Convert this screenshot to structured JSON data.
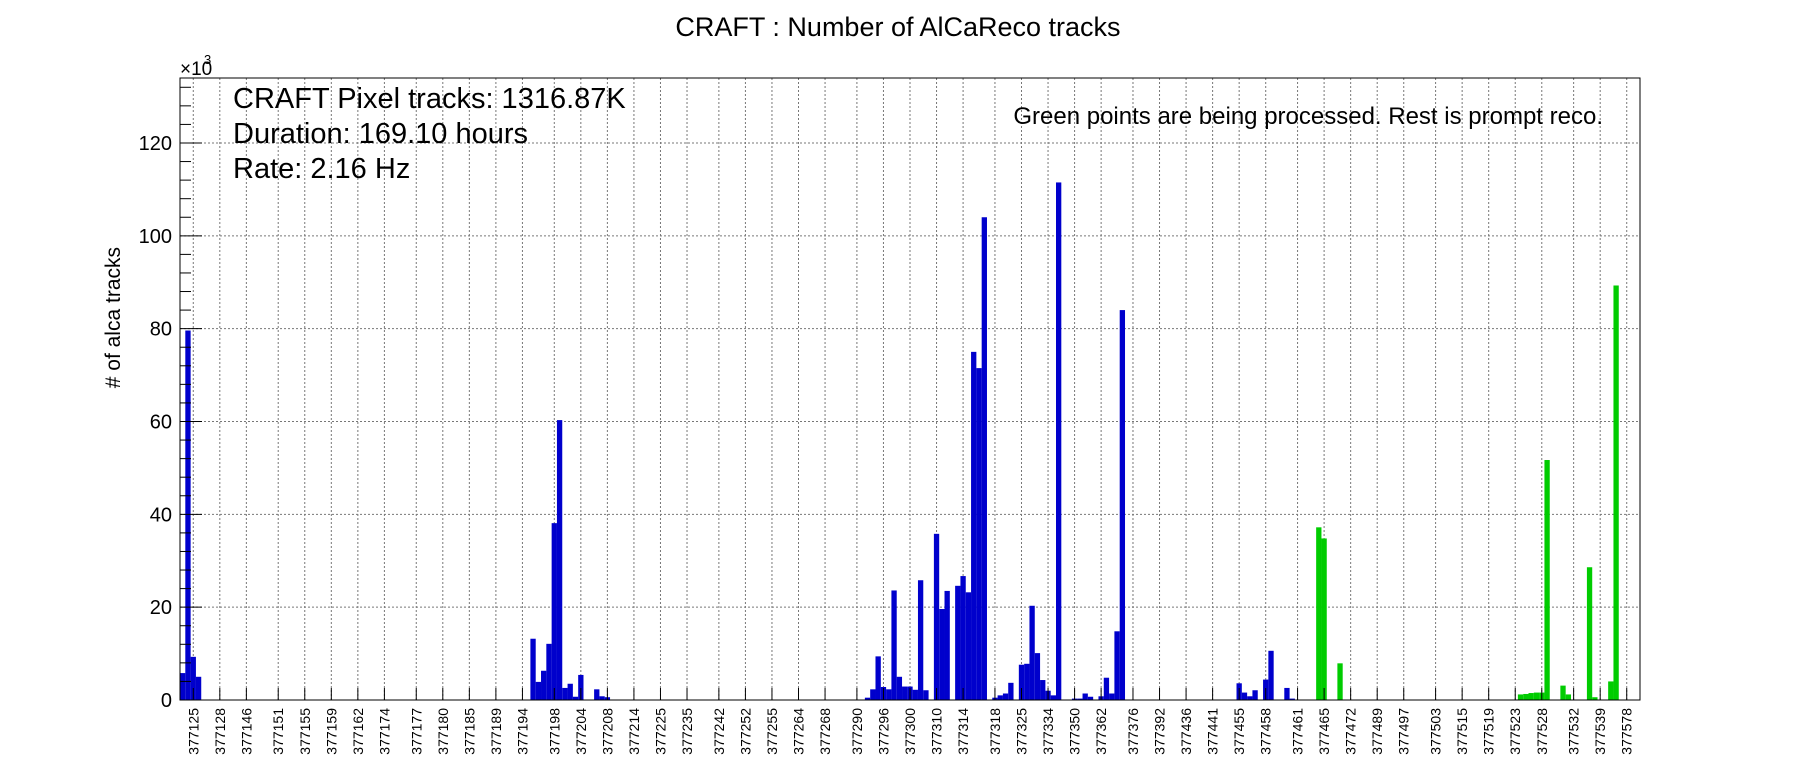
{
  "chart_data": {
    "type": "bar",
    "title": "CRAFT : Number of AlCaReco tracks",
    "ylabel": "# of alca tracks",
    "xlabel": "",
    "y_multiplier_label": "×10",
    "y_multiplier_exp": "3",
    "ylim": [
      0,
      134
    ],
    "y_ticks": [
      0,
      20,
      40,
      60,
      80,
      100,
      120
    ],
    "y_tick_labels": [
      "0",
      "20",
      "40",
      "60",
      "80",
      "100",
      "120"
    ],
    "grid": true,
    "annotations": {
      "stats": [
        "CRAFT Pixel tracks: 1316.87K",
        "Duration: 169.10 hours",
        "Rate: 2.16 Hz"
      ],
      "note": "Green points are being processed. Rest is prompt reco."
    },
    "tick_labels": [
      "377125",
      "377128",
      "377146",
      "377151",
      "377155",
      "377159",
      "377162",
      "377174",
      "377177",
      "377180",
      "377185",
      "377189",
      "377194",
      "377198",
      "377204",
      "377208",
      "377214",
      "377225",
      "377235",
      "377242",
      "377252",
      "377255",
      "377264",
      "377268",
      "377290",
      "377296",
      "377300",
      "377310",
      "377314",
      "377318",
      "377325",
      "377334",
      "377350",
      "377362",
      "377376",
      "377392",
      "377436",
      "377441",
      "377455",
      "377458",
      "377461",
      "377465",
      "377472",
      "377489",
      "377497",
      "377503",
      "377515",
      "377519",
      "377523",
      "377528",
      "377532",
      "377539",
      "377578"
    ],
    "colors": {
      "prompt": "#0000cc",
      "processing": "#00cc00"
    },
    "series": [
      {
        "name": "prompt",
        "values": [
          5.8,
          79.6,
          9.3,
          5.0,
          0,
          0,
          0,
          0,
          0,
          0,
          0,
          0,
          0,
          0,
          0,
          0,
          0,
          0,
          0,
          0,
          0,
          0,
          0,
          0,
          0,
          0,
          0,
          0,
          0,
          0,
          0,
          0,
          0,
          0,
          0,
          0,
          0,
          0,
          0,
          0,
          0,
          0,
          0,
          0,
          0,
          0,
          0,
          0,
          0,
          0,
          0,
          0,
          0,
          0,
          0,
          0,
          0,
          0,
          0,
          0,
          0,
          0,
          0,
          0,
          0,
          0,
          13.2,
          3.9,
          6.3,
          12.1,
          38.1,
          60.3,
          2.6,
          3.5,
          0.7,
          5.4,
          0,
          0,
          2.3,
          0.8,
          0.6,
          0,
          0,
          0,
          0,
          0,
          0,
          0,
          0,
          0,
          0,
          0,
          0,
          0,
          0,
          0,
          0,
          0,
          0,
          0,
          0,
          0,
          0,
          0,
          0,
          0,
          0,
          0,
          0,
          0,
          0,
          0,
          0,
          0,
          0,
          0,
          0,
          0,
          0,
          0,
          0,
          0,
          0,
          0,
          0,
          0,
          0,
          0,
          0,
          0.5,
          2.3,
          9.4,
          2.8,
          2.3,
          23.6,
          5.0,
          2.9,
          2.9,
          2.2,
          25.8,
          2.1,
          0,
          35.8,
          19.6,
          23.5,
          0,
          24.6,
          26.7,
          23.2,
          75.0,
          71.5,
          104.0,
          0,
          0.5,
          1.0,
          1.4,
          3.7,
          0,
          7.6,
          7.8,
          20.3,
          10.1,
          4.3,
          2.0,
          1.0,
          111.5,
          0,
          0,
          0.3,
          0.3,
          1.4,
          0.7,
          0,
          0.8,
          4.8,
          1.4,
          14.8,
          84.0,
          0,
          0,
          0,
          0,
          0,
          0,
          0,
          0,
          0,
          0,
          0,
          0,
          0,
          0,
          0,
          0,
          0,
          0,
          0,
          0,
          0,
          3.6,
          1.6,
          0.8,
          2.1,
          0,
          4.4,
          10.6,
          0,
          0,
          2.6,
          0.3,
          0,
          0,
          0,
          0,
          0,
          0,
          0,
          0,
          0,
          0,
          0,
          0,
          0,
          0,
          0,
          0,
          0,
          0,
          0,
          0,
          0,
          0,
          0,
          0,
          0,
          0,
          0,
          0,
          0,
          0,
          0,
          0,
          0,
          0,
          0,
          0,
          0,
          0,
          0,
          0,
          0,
          0,
          0,
          0,
          0,
          0,
          0,
          0,
          0,
          0,
          0,
          0,
          0,
          0,
          0,
          0,
          0,
          0,
          0,
          0,
          0,
          0,
          0,
          0,
          0
        ]
      },
      {
        "name": "processing",
        "values": [
          0,
          0,
          0,
          0,
          0,
          0,
          0,
          0,
          0,
          0,
          0,
          0,
          0,
          0,
          0,
          0,
          0,
          0,
          0,
          0,
          0,
          0,
          0,
          0,
          0,
          0,
          0,
          0,
          0,
          0,
          0,
          0,
          0,
          0,
          0,
          0,
          0,
          0,
          0,
          0,
          0,
          0,
          0,
          0,
          0,
          0,
          0,
          0,
          0,
          0,
          0,
          0,
          0,
          0,
          0,
          0,
          0,
          0,
          0,
          0,
          0,
          0,
          0,
          0,
          0,
          0,
          0,
          0,
          0,
          0,
          0,
          0,
          0,
          0,
          0,
          0,
          0,
          0,
          0,
          0,
          0,
          0,
          0,
          0,
          0,
          0,
          0,
          0,
          0,
          0,
          0,
          0,
          0,
          0,
          0,
          0,
          0,
          0,
          0,
          0,
          0,
          0,
          0,
          0,
          0,
          0,
          0,
          0,
          0,
          0,
          0,
          0,
          0,
          0,
          0,
          0,
          0,
          0,
          0,
          0,
          0,
          0,
          0,
          0,
          0,
          0,
          0,
          0,
          0,
          0,
          0,
          0,
          0,
          0,
          0,
          0,
          0,
          0,
          0,
          0,
          0,
          0,
          0,
          0,
          0,
          0,
          0,
          0,
          0,
          0,
          0,
          0,
          0,
          0,
          0,
          0,
          0,
          0,
          0,
          0,
          0,
          0,
          0,
          0,
          0,
          0,
          0,
          0,
          0,
          0,
          0,
          0,
          0,
          0,
          0,
          0,
          0,
          0,
          0,
          0,
          0,
          0,
          0,
          0,
          0,
          0,
          0,
          0,
          0,
          0,
          0,
          0,
          0,
          0,
          0,
          0,
          0,
          0,
          0,
          0,
          0,
          0,
          0,
          0,
          0,
          0,
          0,
          0,
          0,
          0,
          0,
          0,
          0,
          0,
          37.2,
          34.8,
          0,
          0,
          7.9,
          0,
          0,
          0,
          0,
          0,
          0,
          0,
          0,
          0,
          0,
          0,
          0,
          0,
          0,
          0,
          0,
          0,
          0,
          0,
          0,
          0,
          0,
          0,
          0,
          0,
          0,
          0,
          0,
          0,
          0,
          0,
          0,
          0,
          1.2,
          1.3,
          1.5,
          1.6,
          1.6,
          51.7,
          0,
          0,
          3.1,
          1.2,
          0,
          0,
          0,
          28.6,
          0.6,
          0,
          0,
          4.0,
          89.3,
          0
        ]
      }
    ]
  }
}
